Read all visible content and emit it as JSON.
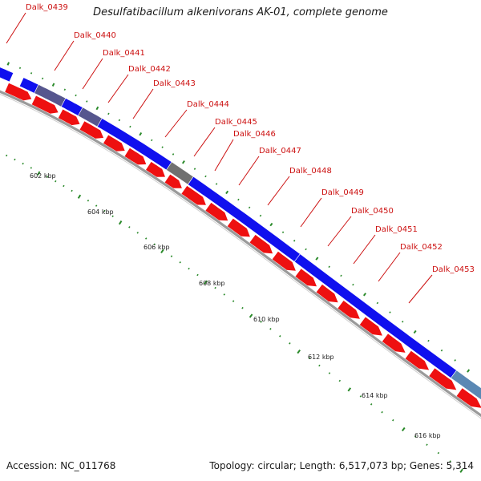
{
  "title": "Desulfatibacillum alkenivorans AK-01, complete genome",
  "footer": {
    "accession": "Accession: NC_011768",
    "summary": "Topology: circular; Length: 6,517,073 bp; Genes: 5,314"
  },
  "colors": {
    "forward_cds": "#1010ee",
    "reverse_cds": "#ee1010",
    "backbone": "#9a9a9a",
    "ticks": "#2a8a2a",
    "gene_label": "#cc1010",
    "muted_segment": "#56568e",
    "gray_segment": "#707070",
    "light_segment": "#5a88b4"
  },
  "gene_labels": [
    "Dalk_0439",
    "Dalk_0440",
    "Dalk_0441",
    "Dalk_0442",
    "Dalk_0443",
    "Dalk_0444",
    "Dalk_0445",
    "Dalk_0446",
    "Dalk_0447",
    "Dalk_0448",
    "Dalk_0449",
    "Dalk_0450",
    "Dalk_0451",
    "Dalk_0452",
    "Dalk_0453"
  ],
  "kbp_labels": [
    "602 kbp",
    "604 kbp",
    "606 kbp",
    "608 kbp",
    "610 kbp",
    "612 kbp",
    "614 kbp",
    "616 kbp"
  ]
}
